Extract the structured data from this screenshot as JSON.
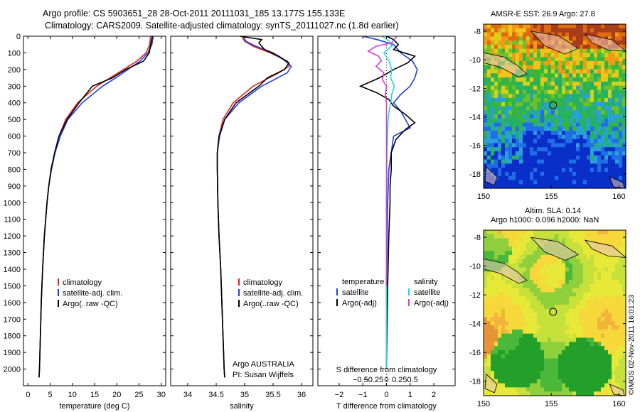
{
  "header": {
    "line1": "Argo profile: CS 5903651_28 28-Oct-2011 20111031_185 13.177S 155.133E",
    "line2": "Climatology: CARS2009. Satellite-adjusted climatology: synTS_20111027.nc (1.8d earlier)"
  },
  "depth_ticks": [
    0,
    100,
    200,
    300,
    400,
    500,
    600,
    700,
    800,
    900,
    1000,
    1100,
    1200,
    1300,
    1400,
    1500,
    1600,
    1700,
    1800,
    1900,
    2000
  ],
  "colors": {
    "climatology": "#e8231a",
    "satellite": "#1f3fe0",
    "argo": "#000000",
    "cyan": "#22d6e6",
    "magenta": "#d63ad6"
  },
  "chart_data": [
    {
      "type": "line",
      "id": "temperature",
      "xlabel": "temperature (deg C)",
      "xlim": [
        -1,
        31
      ],
      "ylim": [
        0,
        2100
      ],
      "xticks": [
        0,
        5,
        10,
        15,
        20,
        25,
        30
      ],
      "legend": [
        "climatology",
        "satellite-adj. clim.",
        "Argo(..raw -QC)"
      ],
      "series": [
        {
          "name": "climatology",
          "depth": [
            0,
            50,
            100,
            150,
            200,
            250,
            300,
            400,
            500,
            600,
            700,
            800,
            900,
            1000,
            1200,
            1400,
            1600,
            1800,
            2000,
            2050
          ],
          "values": [
            27.6,
            27.4,
            26.6,
            24.5,
            21.5,
            18.5,
            15.5,
            11.2,
            8.5,
            7,
            6,
            5.2,
            4.7,
            4.3,
            3.7,
            3.3,
            3,
            2.8,
            2.6,
            2.5
          ]
        },
        {
          "name": "satellite-adj. clim.",
          "depth": [
            0,
            50,
            100,
            150,
            200,
            250,
            300,
            400,
            500,
            600,
            700,
            800,
            900,
            1000,
            1200,
            1400,
            1600,
            1800,
            2000,
            2050
          ],
          "values": [
            28.2,
            27.9,
            27,
            25.2,
            22.5,
            19.8,
            16.8,
            12.2,
            9,
            7.3,
            6.1,
            5.3,
            4.7,
            4.3,
            3.7,
            3.3,
            3,
            2.8,
            2.6,
            2.5
          ]
        },
        {
          "name": "Argo(..raw -QC)",
          "depth": [
            0,
            50,
            100,
            150,
            200,
            250,
            300,
            350,
            400,
            500,
            600,
            700,
            800,
            900,
            1000,
            1200,
            1400,
            1600,
            1800,
            2000,
            2050
          ],
          "values": [
            28,
            27.6,
            27.3,
            26,
            22,
            19,
            14.5,
            13,
            11.5,
            8.8,
            7,
            6,
            5.2,
            4.7,
            4.3,
            3.7,
            3.3,
            3,
            2.8,
            2.6,
            2.5
          ]
        }
      ]
    },
    {
      "type": "line",
      "id": "salinity",
      "xlabel": "salinity",
      "xlim": [
        33.7,
        36.2
      ],
      "ylim": [
        0,
        2100
      ],
      "xticks": [
        34,
        34.5,
        35,
        35.5,
        36
      ],
      "legend": [
        "climatology",
        "satellite-adj. clim.",
        "Argo(..raw -QC)"
      ],
      "annotation": [
        "Argo AUSTRALIA",
        "PI: Susan Wijffels"
      ],
      "series": [
        {
          "name": "climatology",
          "depth": [
            0,
            30,
            60,
            100,
            150,
            180,
            220,
            300,
            400,
            500,
            600,
            700,
            800,
            1000,
            1200,
            1400,
            1600,
            1800,
            2000,
            2050
          ],
          "values": [
            34.95,
            35,
            35.15,
            35.45,
            35.75,
            35.78,
            35.6,
            35.15,
            34.8,
            34.62,
            34.55,
            34.52,
            34.52,
            34.53,
            34.55,
            34.58,
            34.6,
            34.62,
            34.64,
            34.65
          ]
        },
        {
          "name": "satellite-adj. clim.",
          "depth": [
            0,
            30,
            60,
            100,
            150,
            180,
            220,
            300,
            400,
            500,
            600,
            700,
            800,
            1000,
            1200,
            1400,
            1600,
            1800,
            2000,
            2050
          ],
          "values": [
            34.98,
            35.02,
            35.2,
            35.5,
            35.72,
            35.82,
            35.75,
            35.3,
            34.9,
            34.65,
            34.56,
            34.52,
            34.52,
            34.53,
            34.55,
            34.58,
            34.6,
            34.62,
            34.64,
            34.65
          ]
        },
        {
          "name": "Argo(..raw -QC)",
          "depth": [
            0,
            20,
            40,
            80,
            120,
            160,
            200,
            250,
            300,
            400,
            500,
            600,
            700,
            800,
            1000,
            1200,
            1400,
            1600,
            1800,
            2000,
            2050
          ],
          "values": [
            34.92,
            35.3,
            35.25,
            35.35,
            35.6,
            35.78,
            35.7,
            35.4,
            35.25,
            34.85,
            34.65,
            34.55,
            34.52,
            34.52,
            34.53,
            34.55,
            34.58,
            34.6,
            34.62,
            34.64,
            34.65
          ]
        }
      ]
    },
    {
      "type": "line",
      "id": "differences",
      "xlabel": "T difference from climatology",
      "xlabel_top": "S difference from climatology",
      "xlim": [
        -2.9,
        2.9
      ],
      "ylim": [
        0,
        2100
      ],
      "xticks": [
        -2,
        -1,
        0,
        1,
        2
      ],
      "xticks_top": [
        "-0.5",
        "-0.25",
        "0",
        "0.25",
        "0.5"
      ],
      "legend_titles": [
        "temperature",
        "salinity"
      ],
      "legend": [
        "satellite",
        "Argo(-adj)",
        "satellite",
        "Argo(-adj)"
      ],
      "series": [
        {
          "name": "temperature satellite",
          "depth": [
            0,
            20,
            50,
            100,
            150,
            200,
            250,
            300,
            350,
            400,
            450,
            500,
            550,
            600,
            700,
            800,
            1000,
            1500,
            2000
          ],
          "values": [
            -1,
            -0.4,
            0.3,
            0.6,
            1.1,
            1.3,
            1.2,
            1,
            0.6,
            0.3,
            0.6,
            0.8,
            1,
            0.3,
            0.2,
            0.1,
            0.05,
            0,
            0
          ]
        },
        {
          "name": "temperature Argo(-adj)",
          "depth": [
            0,
            20,
            50,
            80,
            120,
            160,
            200,
            250,
            300,
            340,
            380,
            420,
            470,
            520,
            560,
            620,
            700,
            800,
            900,
            1000,
            1200,
            1500,
            2000
          ],
          "values": [
            0,
            0.3,
            0.5,
            0.3,
            1.2,
            0.9,
            0.3,
            -0.3,
            -1.1,
            -0.4,
            0.1,
            0.3,
            0.8,
            1.2,
            0.8,
            0.4,
            0.2,
            0.2,
            0.15,
            0.15,
            0.1,
            0.05,
            0
          ]
        },
        {
          "name": "salinity satellite",
          "depth": [
            0,
            30,
            60,
            100,
            150,
            200,
            250,
            300,
            350,
            400,
            450,
            500,
            600,
            700,
            1000,
            1500,
            2000
          ],
          "values": [
            -0.08,
            0.05,
            0.1,
            -0.05,
            0.05,
            0.1,
            0.08,
            0.15,
            0.1,
            0.08,
            0.05,
            0.03,
            0.02,
            0.01,
            0,
            0,
            0
          ]
        },
        {
          "name": "salinity Argo(-adj)",
          "depth": [
            0,
            20,
            40,
            60,
            90,
            120,
            150,
            180,
            220,
            260,
            300,
            350,
            400,
            1500
          ],
          "values": [
            0.2,
            0.15,
            0.1,
            -0.2,
            -0.35,
            -0.15,
            -0.1,
            -0.2,
            -0.05,
            -0.08,
            0,
            -0.02,
            0,
            0
          ]
        }
      ]
    }
  ],
  "maps": {
    "sst": {
      "title": "AMSR-E SST: 26.9 Argo: 27.8",
      "yticks": [
        -8,
        -10,
        -12,
        -14,
        -16,
        -18
      ],
      "xticks": [
        150,
        155,
        160
      ]
    },
    "sla": {
      "title_line1": "Altim. SLA: 0.14",
      "title_line2": "Argo h1000: 0.096 h2000: NaN",
      "yticks": [
        -8,
        -10,
        -12,
        -14,
        -16,
        -18
      ],
      "xticks": [
        150,
        155,
        160
      ]
    }
  },
  "credit": "©IMOS 02-Nov-2011 16:01:23"
}
